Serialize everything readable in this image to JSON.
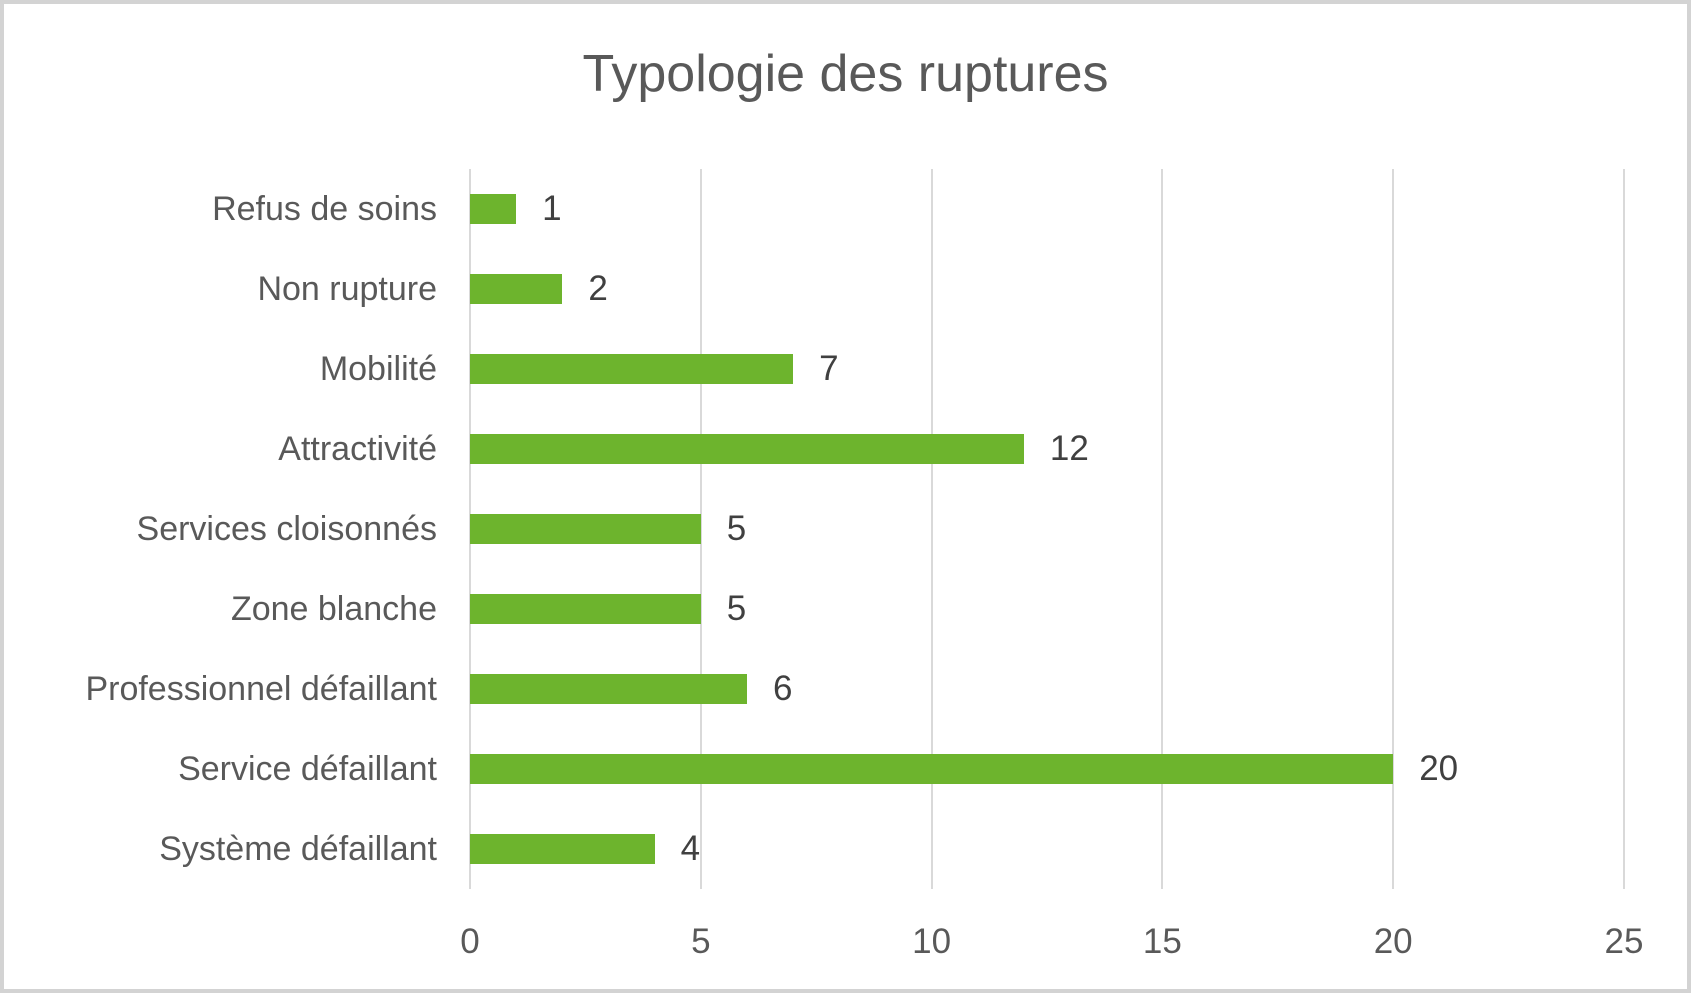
{
  "chart_data": {
    "type": "bar",
    "orientation": "horizontal",
    "title": "Typologie des ruptures",
    "categories": [
      "Refus de soins",
      "Non rupture",
      "Mobilité",
      "Attractivité",
      "Services cloisonnés",
      "Zone blanche",
      "Professionnel défaillant",
      "Service défaillant",
      "Système défaillant"
    ],
    "values": [
      1,
      2,
      7,
      12,
      5,
      5,
      6,
      20,
      4
    ],
    "data_labels": [
      "1",
      "2",
      "7",
      "12",
      "5",
      "5",
      "6",
      "20",
      "4"
    ],
    "x_ticks": [
      0,
      5,
      10,
      15,
      20,
      25
    ],
    "x_tick_labels": [
      "0",
      "5",
      "10",
      "15",
      "20",
      "25"
    ],
    "xlim": [
      0,
      25
    ],
    "xlabel": "",
    "ylabel": "",
    "grid": true,
    "legend": false,
    "colors": {
      "bar": "#6db42d",
      "gridline": "#d9d9d9",
      "title_text": "#595959",
      "axis_text": "#595959",
      "value_text": "#404040",
      "frame_border": "#d3d3d3",
      "background": "#ffffff"
    }
  }
}
